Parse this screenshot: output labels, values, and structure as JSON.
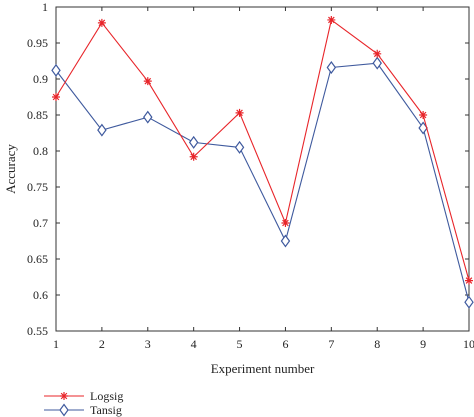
{
  "chart_data": {
    "type": "line",
    "xlabel": "Experiment number",
    "ylabel": "Accuracy",
    "x": [
      1,
      2,
      3,
      4,
      5,
      6,
      7,
      8,
      9,
      10
    ],
    "xlim": [
      1,
      10
    ],
    "ylim": [
      0.55,
      1
    ],
    "x_ticks": [
      1,
      2,
      3,
      4,
      5,
      6,
      7,
      8,
      9,
      10
    ],
    "y_ticks": [
      "0.55",
      "0.6",
      "0.65",
      "0.7",
      "0.75",
      "0.8",
      "0.85",
      "0.9",
      "0.95",
      "1"
    ],
    "grid": false,
    "legend_position": "bottom-left, below plot",
    "series": [
      {
        "name": "Logsig",
        "color": "#e8252a",
        "marker": "asterisk",
        "values": [
          0.875,
          0.978,
          0.897,
          0.792,
          0.853,
          0.7,
          0.982,
          0.935,
          0.85,
          0.62
        ]
      },
      {
        "name": "Tansig",
        "color": "#3f5a9e",
        "marker": "diamond",
        "values": [
          0.912,
          0.829,
          0.847,
          0.812,
          0.805,
          0.675,
          0.916,
          0.922,
          0.832,
          0.59
        ]
      }
    ]
  }
}
